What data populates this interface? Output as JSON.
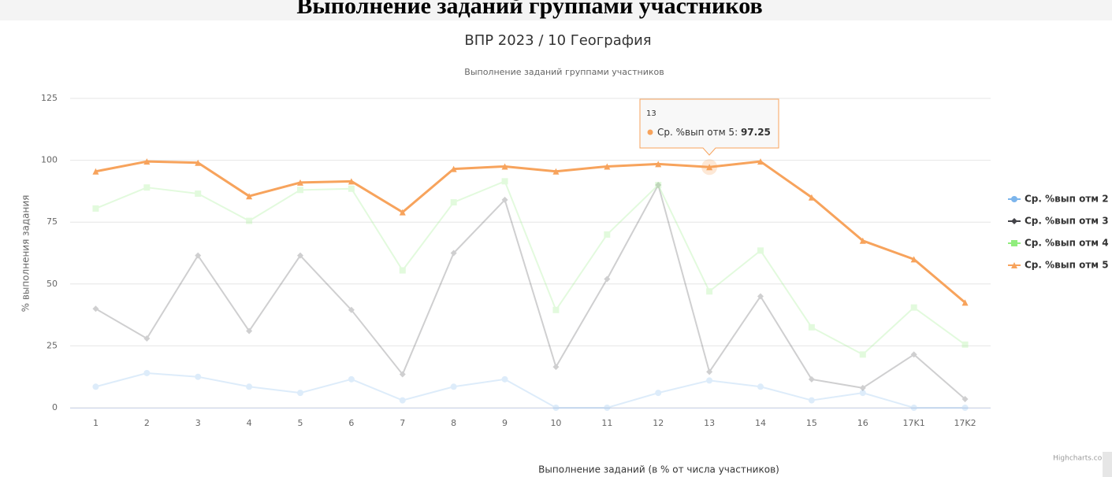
{
  "page_title": "Выполнение заданий группами участников",
  "chart_data": {
    "type": "line",
    "title": "ВПР 2023 / 10 География",
    "subtitle": "Выполнение заданий группами участников",
    "y_axis_label": "% выполнения задания",
    "x_axis_label": "Выполнение заданий (в % от числа участников)",
    "credits": "Highcharts.com",
    "categories": [
      "1",
      "2",
      "3",
      "4",
      "5",
      "6",
      "7",
      "8",
      "9",
      "10",
      "11",
      "12",
      "13",
      "14",
      "15",
      "16",
      "17K1",
      "17K2"
    ],
    "ylim": [
      0,
      125
    ],
    "yticks": [
      0,
      25,
      50,
      75,
      100,
      125
    ],
    "grid": true,
    "legend": "right",
    "series": [
      {
        "name": "Ср. %вып отм 2",
        "color": "#7cb5ec",
        "marker": "circle",
        "opacity": 0.25,
        "values": [
          8.5,
          14,
          12.5,
          8.5,
          6,
          11.5,
          3,
          8.5,
          11.5,
          0,
          0,
          6,
          11,
          8.5,
          3,
          6,
          0,
          0
        ]
      },
      {
        "name": "Ср. %вып отм 3",
        "color": "#434348",
        "marker": "diamond",
        "opacity": 0.25,
        "values": [
          40,
          28,
          61.5,
          31,
          61.5,
          39.5,
          13.5,
          62.5,
          84,
          16.5,
          52,
          90,
          14.5,
          45,
          11.5,
          8,
          21.5,
          3.5
        ]
      },
      {
        "name": "Ср. %вып отм 4",
        "color": "#90ed7d",
        "marker": "square",
        "opacity": 0.25,
        "values": [
          80.5,
          89,
          86.5,
          75.5,
          88,
          88.5,
          55.5,
          83,
          91.5,
          39.5,
          70,
          90,
          47,
          63.5,
          32.5,
          21.5,
          40.5,
          25.5
        ]
      },
      {
        "name": "Ср. %вып отм 5",
        "color": "#f7a35c",
        "marker": "triangle",
        "opacity": 1,
        "values": [
          95.5,
          99.5,
          99,
          85.5,
          91,
          91.5,
          79,
          96.5,
          97.5,
          95.5,
          97.5,
          98.5,
          97.25,
          99.5,
          85,
          67.5,
          60,
          42.5
        ]
      }
    ]
  }
}
